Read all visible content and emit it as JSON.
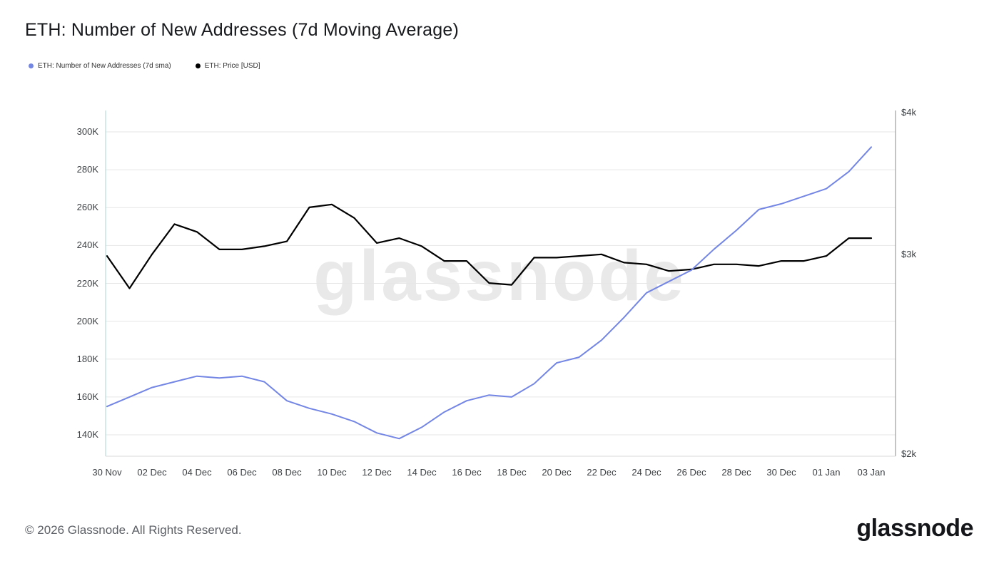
{
  "title": "ETH: Number of New Addresses (7d Moving Average)",
  "legend": {
    "items": [
      {
        "label": "ETH: Number of New Addresses (7d sma)",
        "color": "#7486e4"
      },
      {
        "label": "ETH: Price [USD]",
        "color": "#000000"
      }
    ]
  },
  "watermark": "glassnode",
  "footer": {
    "copyright": "© 2026 Glassnode. All Rights Reserved.",
    "brand": "glassnode"
  },
  "colors": {
    "addresses_line": "#7486e4",
    "price_line": "#000000",
    "gridline": "#e6e6e6",
    "left_axis_line": "#a9d4d4",
    "right_axis_line": "#8a8a8a",
    "bottom_axis_line": "#d8d8d8"
  },
  "chart_data": {
    "type": "line",
    "title": "ETH: Number of New Addresses (7d Moving Average)",
    "x": [
      "30 Nov",
      "01 Dec",
      "02 Dec",
      "03 Dec",
      "04 Dec",
      "05 Dec",
      "06 Dec",
      "07 Dec",
      "08 Dec",
      "09 Dec",
      "10 Dec",
      "11 Dec",
      "12 Dec",
      "13 Dec",
      "14 Dec",
      "15 Dec",
      "16 Dec",
      "17 Dec",
      "18 Dec",
      "19 Dec",
      "20 Dec",
      "21 Dec",
      "22 Dec",
      "23 Dec",
      "24 Dec",
      "25 Dec",
      "26 Dec",
      "27 Dec",
      "28 Dec",
      "29 Dec",
      "30 Dec",
      "31 Dec",
      "01 Jan",
      "02 Jan",
      "03 Jan"
    ],
    "x_tick_labels": [
      "30 Nov",
      "02 Dec",
      "04 Dec",
      "06 Dec",
      "08 Dec",
      "10 Dec",
      "12 Dec",
      "14 Dec",
      "16 Dec",
      "18 Dec",
      "20 Dec",
      "22 Dec",
      "24 Dec",
      "26 Dec",
      "28 Dec",
      "30 Dec",
      "01 Jan",
      "03 Jan"
    ],
    "series": [
      {
        "name": "ETH: Number of New Addresses (7d sma)",
        "axis": "left",
        "unit": "thousand addresses",
        "color": "#7486e4",
        "values": [
          155,
          160,
          165,
          168,
          171,
          170,
          171,
          168,
          158,
          154,
          151,
          147,
          141,
          138,
          144,
          152,
          158,
          161,
          160,
          167,
          178,
          181,
          190,
          202,
          215,
          221,
          227,
          238,
          248,
          259,
          262,
          266,
          270,
          279,
          292
        ]
      },
      {
        "name": "ETH: Price [USD]",
        "axis": "right",
        "unit": "USD",
        "color": "#000000",
        "values": [
          2990,
          2800,
          3000,
          3190,
          3140,
          3030,
          3030,
          3050,
          3080,
          3300,
          3320,
          3230,
          3070,
          3100,
          3050,
          2960,
          2960,
          2830,
          2820,
          2980,
          2980,
          2990,
          3000,
          2950,
          2940,
          2900,
          2910,
          2940,
          2940,
          2930,
          2960,
          2960,
          2990,
          3100,
          3100
        ]
      }
    ],
    "left_axis": {
      "scale": "linear",
      "unit": "K",
      "ticks": [
        300,
        280,
        260,
        240,
        220,
        200,
        180,
        160,
        140
      ],
      "tick_labels": [
        "300K",
        "280K",
        "260K",
        "240K",
        "220K",
        "200K",
        "180K",
        "160K",
        "140K"
      ],
      "approx_range_k": [
        129,
        311
      ]
    },
    "right_axis": {
      "scale": "log",
      "unit": "USD",
      "tick_values": [
        4000,
        3000,
        2000
      ],
      "tick_labels": [
        "$4k",
        "$3k",
        "$2k"
      ],
      "range_usd": [
        2000,
        4000
      ]
    },
    "grid": "horizontal",
    "legend_position": "top-left"
  }
}
